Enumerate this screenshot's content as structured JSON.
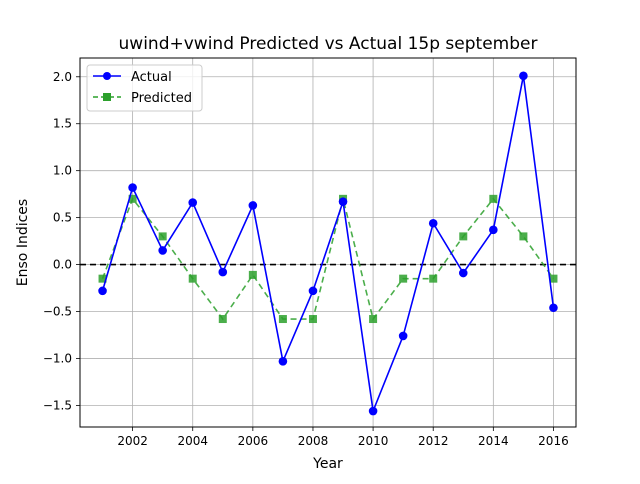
{
  "chart_data": {
    "type": "line",
    "title": "uwind+vwind Predicted vs Actual 15p september",
    "xlabel": "Year",
    "ylabel": "Enso Indices",
    "xlim": [
      2000.25,
      2016.75
    ],
    "ylim": [
      -1.73,
      2.2
    ],
    "x_ticks": [
      2002,
      2004,
      2006,
      2008,
      2010,
      2012,
      2014,
      2016
    ],
    "y_ticks": [
      -1.5,
      -1.0,
      -0.5,
      0.0,
      0.5,
      1.0,
      1.5,
      2.0
    ],
    "y_tick_labels": [
      "−1.5",
      "−1.0",
      "−0.5",
      "0.0",
      "0.5",
      "1.0",
      "1.5",
      "2.0"
    ],
    "grid": true,
    "legend_position": "top-left",
    "reference_line": {
      "y": 0,
      "style": "dashed",
      "color": "#000000"
    },
    "x": [
      2001,
      2002,
      2003,
      2004,
      2005,
      2006,
      2007,
      2008,
      2009,
      2010,
      2011,
      2012,
      2013,
      2014,
      2015,
      2016
    ],
    "series": [
      {
        "name": "Actual",
        "color": "#0000ff",
        "marker": "circle",
        "line_style": "solid",
        "values": [
          -0.28,
          0.82,
          0.15,
          0.66,
          -0.08,
          0.63,
          -1.03,
          -0.28,
          0.67,
          -1.56,
          -0.76,
          0.44,
          -0.09,
          0.37,
          2.01,
          -0.46
        ]
      },
      {
        "name": "Predicted",
        "color": "#2ca02c",
        "marker": "square",
        "line_style": "dashed",
        "values": [
          -0.15,
          0.7,
          0.3,
          -0.15,
          -0.58,
          -0.11,
          -0.58,
          -0.58,
          0.7,
          -0.58,
          -0.15,
          -0.15,
          0.3,
          0.7,
          0.3,
          -0.15
        ]
      }
    ]
  }
}
